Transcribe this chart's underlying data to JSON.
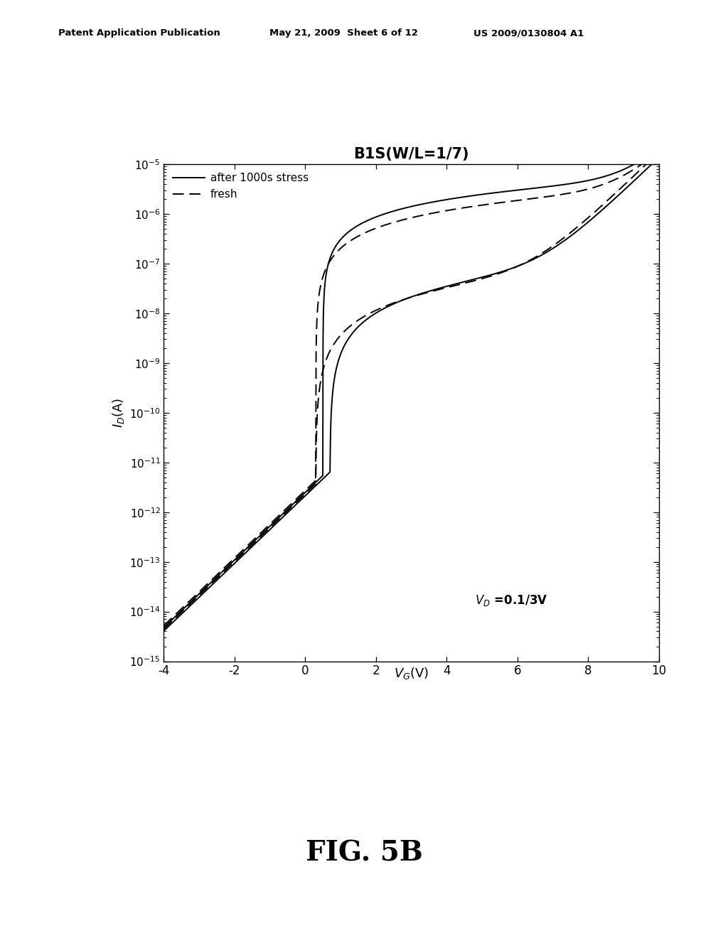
{
  "title": "B1S(W/L=1/7)",
  "xlim": [
    -4,
    10
  ],
  "ylim_log": [
    -15,
    -5
  ],
  "xticks": [
    -4,
    -2,
    0,
    2,
    4,
    6,
    8,
    10
  ],
  "annotation": "V_D =0.1/3V",
  "legend_fresh": "fresh",
  "legend_stress": "after 1000s stress",
  "bg_color": "#ffffff",
  "header_left": "Patent Application Publication",
  "header_mid": "May 21, 2009  Sheet 6 of 12",
  "header_right": "US 2009/0130804 A1",
  "fig_label": "FIG. 5B"
}
